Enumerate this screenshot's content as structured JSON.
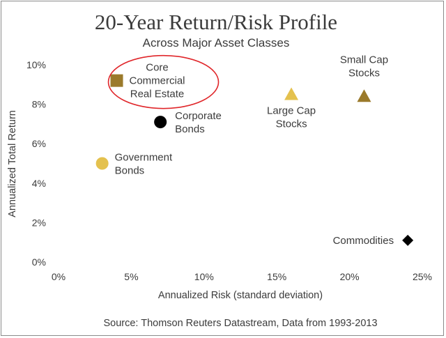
{
  "chart_data": {
    "type": "scatter",
    "title": "20-Year Return/Risk Profile",
    "subtitle": "Across Major Asset Classes",
    "xlabel": "Annualized Risk (standard deviation)",
    "ylabel": "Annualized Total Return",
    "xlim": [
      0,
      25
    ],
    "ylim": [
      0,
      10
    ],
    "xticks": [
      "0%",
      "5%",
      "10%",
      "15%",
      "20%",
      "25%"
    ],
    "yticks": [
      "0%",
      "2%",
      "4%",
      "6%",
      "8%",
      "10%"
    ],
    "grid": false,
    "source": "Source: Thomson Reuters Datastream, Data from 1993-2013",
    "points": [
      {
        "label": [
          "Core",
          "Commercial",
          "Real Estate"
        ],
        "x": 4,
        "y": 9.2,
        "marker": "square",
        "color": "#9b7a2b",
        "highlighted": true
      },
      {
        "label": [
          "Corporate",
          "Bonds"
        ],
        "x": 7,
        "y": 7.1,
        "marker": "circle",
        "color": "#000000"
      },
      {
        "label": [
          "Government",
          "Bonds"
        ],
        "x": 3,
        "y": 5.0,
        "marker": "circle",
        "color": "#e4c14e"
      },
      {
        "label": [
          "Large Cap",
          "Stocks"
        ],
        "x": 16,
        "y": 8.5,
        "marker": "triangle",
        "color": "#e4c14e"
      },
      {
        "label": [
          "Small Cap",
          "Stocks"
        ],
        "x": 21,
        "y": 8.4,
        "marker": "triangle",
        "color": "#9b7a2b"
      },
      {
        "label": [
          "Commodities"
        ],
        "x": 24,
        "y": 1.1,
        "marker": "diamond",
        "color": "#000000"
      }
    ],
    "highlight_color": "#e0262a"
  }
}
